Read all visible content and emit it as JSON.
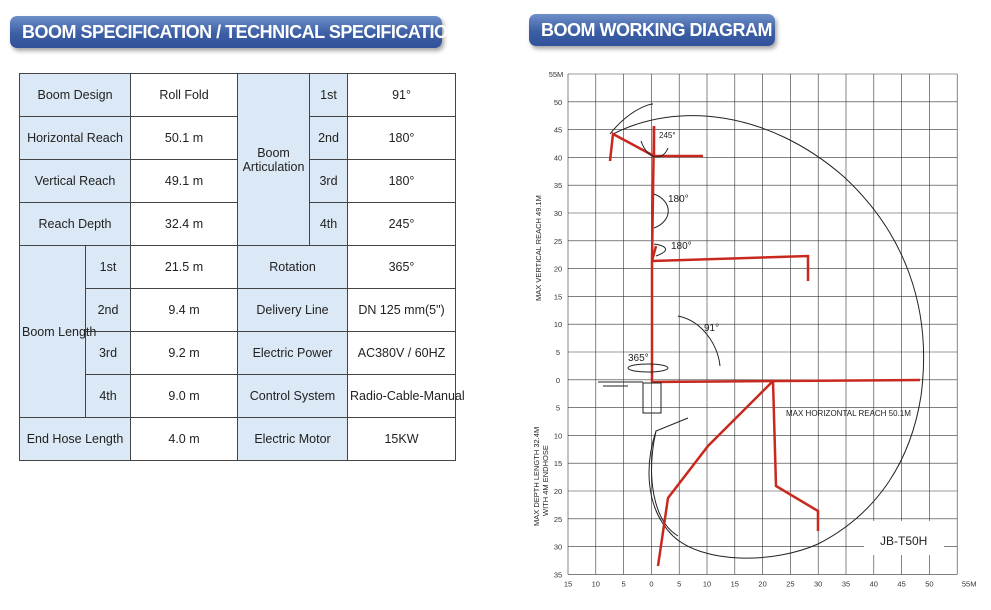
{
  "headers": {
    "spec": "BOOM SPECIFICATION / TECHNICAL SPECIFICATION",
    "diagram": "BOOM WORKING DIAGRAM"
  },
  "spec_table": {
    "boom_design": {
      "label": "Boom Design",
      "value": "Roll Fold"
    },
    "horizontal_reach": {
      "label": "Horizontal Reach",
      "value": "50.1 m"
    },
    "vertical_reach": {
      "label": "Vertical Reach",
      "value": "49.1 m"
    },
    "reach_depth": {
      "label": "Reach Depth",
      "value": "32.4 m"
    },
    "boom_articulation": {
      "label_line1": "Boom",
      "label_line2": "Articulation",
      "rows": [
        {
          "section": "1st",
          "value": "91°"
        },
        {
          "section": "2nd",
          "value": "180°"
        },
        {
          "section": "3rd",
          "value": "180°"
        },
        {
          "section": "4th",
          "value": "245°"
        }
      ]
    },
    "boom_length": {
      "label": "Boom Length",
      "rows": [
        {
          "section": "1st",
          "value": "21.5 m"
        },
        {
          "section": "2nd",
          "value": "9.4 m"
        },
        {
          "section": "3rd",
          "value": "9.2 m"
        },
        {
          "section": "4th",
          "value": "9.0 m"
        }
      ]
    },
    "end_hose_length": {
      "label": "End Hose Length",
      "value": "4.0 m"
    },
    "rotation": {
      "label": "Rotation",
      "value": "365°"
    },
    "delivery_line": {
      "label": "Delivery Line",
      "value": "DN 125 mm(5\")"
    },
    "electric_power": {
      "label": "Electric Power",
      "value": "AC380V / 60HZ"
    },
    "control_system": {
      "label": "Control System",
      "value": "Radio-Cable-Manual"
    },
    "electric_motor": {
      "label": "Electric Motor",
      "value": "15KW"
    }
  },
  "diagram": {
    "y_axis_top_label": "55M",
    "x_axis_end_label": "55M",
    "y_ticks_up": [
      "50",
      "45",
      "40",
      "35",
      "30",
      "25",
      "20",
      "15",
      "10",
      "5",
      "0"
    ],
    "y_ticks_down": [
      "5",
      "10",
      "15",
      "20",
      "25",
      "30",
      "35"
    ],
    "x_ticks": [
      "15",
      "10",
      "5",
      "0",
      "5",
      "10",
      "15",
      "20",
      "25",
      "30",
      "35",
      "40",
      "45",
      "50"
    ],
    "angle_245": "245°",
    "angle_180_upper": "180°",
    "angle_180_lower": "180°",
    "angle_91": "91°",
    "angle_365": "365°",
    "max_vertical_reach": "MAX VERTICAL REACH 49.1M",
    "max_horizontal_reach": "MAX HORIZONTAL REACH 50.1M",
    "max_depth_line1": "MAX DEPTH LENGTH 32.4M",
    "max_depth_line2": "WITH 4M ENDHOSE",
    "model": "JB-T50H",
    "colors": {
      "boom": "#c8281e",
      "grid": "#333333"
    }
  }
}
